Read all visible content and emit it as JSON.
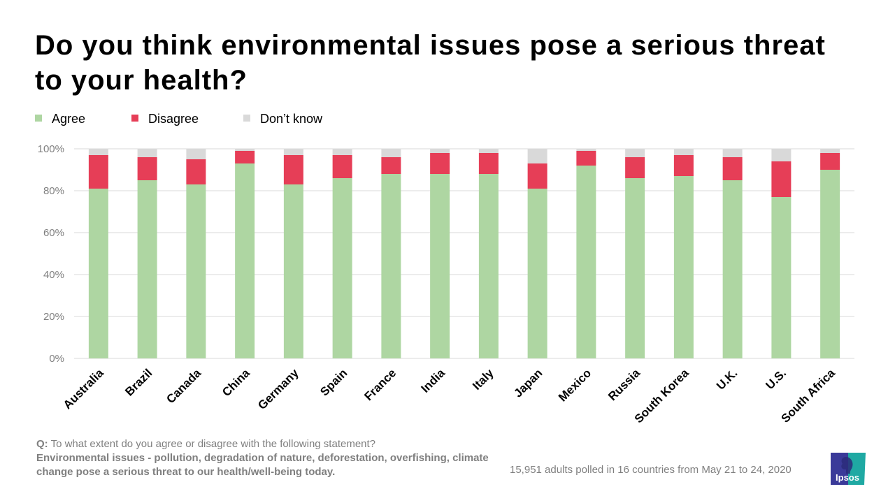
{
  "title": "Do you think environmental issues pose a serious threat to your health?",
  "legend": [
    {
      "label": "Agree",
      "color": "#aed6a2"
    },
    {
      "label": "Disagree",
      "color": "#e63e57"
    },
    {
      "label": "Don’t know",
      "color": "#d9d9d9"
    }
  ],
  "chart_data": {
    "type": "bar",
    "stacked": true,
    "title": "Do you think environmental issues pose a serious threat to your health?",
    "xlabel": "",
    "ylabel": "",
    "ylim": [
      0,
      100
    ],
    "yticks": [
      "0%",
      "20%",
      "40%",
      "60%",
      "80%",
      "100%"
    ],
    "ytick_values": [
      0,
      20,
      40,
      60,
      80,
      100
    ],
    "grid": true,
    "legend_position": "top-left",
    "categories": [
      "Australia",
      "Brazil",
      "Canada",
      "China",
      "Germany",
      "Spain",
      "France",
      "India",
      "Italy",
      "Japan",
      "Mexico",
      "Russia",
      "South Korea",
      "U.K.",
      "U.S.",
      "South Africa"
    ],
    "series": [
      {
        "name": "Agree",
        "color": "#aed6a2",
        "values": [
          81,
          85,
          83,
          93,
          83,
          86,
          88,
          88,
          88,
          81,
          92,
          86,
          87,
          85,
          77,
          90
        ]
      },
      {
        "name": "Disagree",
        "color": "#e63e57",
        "values": [
          16,
          11,
          12,
          6,
          14,
          11,
          8,
          10,
          10,
          12,
          7,
          10,
          10,
          11,
          17,
          8
        ]
      },
      {
        "name": "Don’t know",
        "color": "#d9d9d9",
        "values": [
          3,
          4,
          5,
          1,
          3,
          3,
          4,
          2,
          2,
          7,
          1,
          4,
          3,
          4,
          6,
          2
        ]
      }
    ]
  },
  "footer": {
    "q_prefix": "Q:",
    "question": " To what extent do you agree or disagree with the following statement?",
    "statement": "Environmental issues - pollution, degradation of nature, deforestation, overfishing, climate change pose a serious threat to our health/well-being today.",
    "note": "15,951 adults polled in 16 countries from May 21 to 24, 2020"
  },
  "logo": {
    "text": "Ipsos",
    "colors": {
      "left": "#3a3a99",
      "right": "#1fa9a3"
    }
  }
}
